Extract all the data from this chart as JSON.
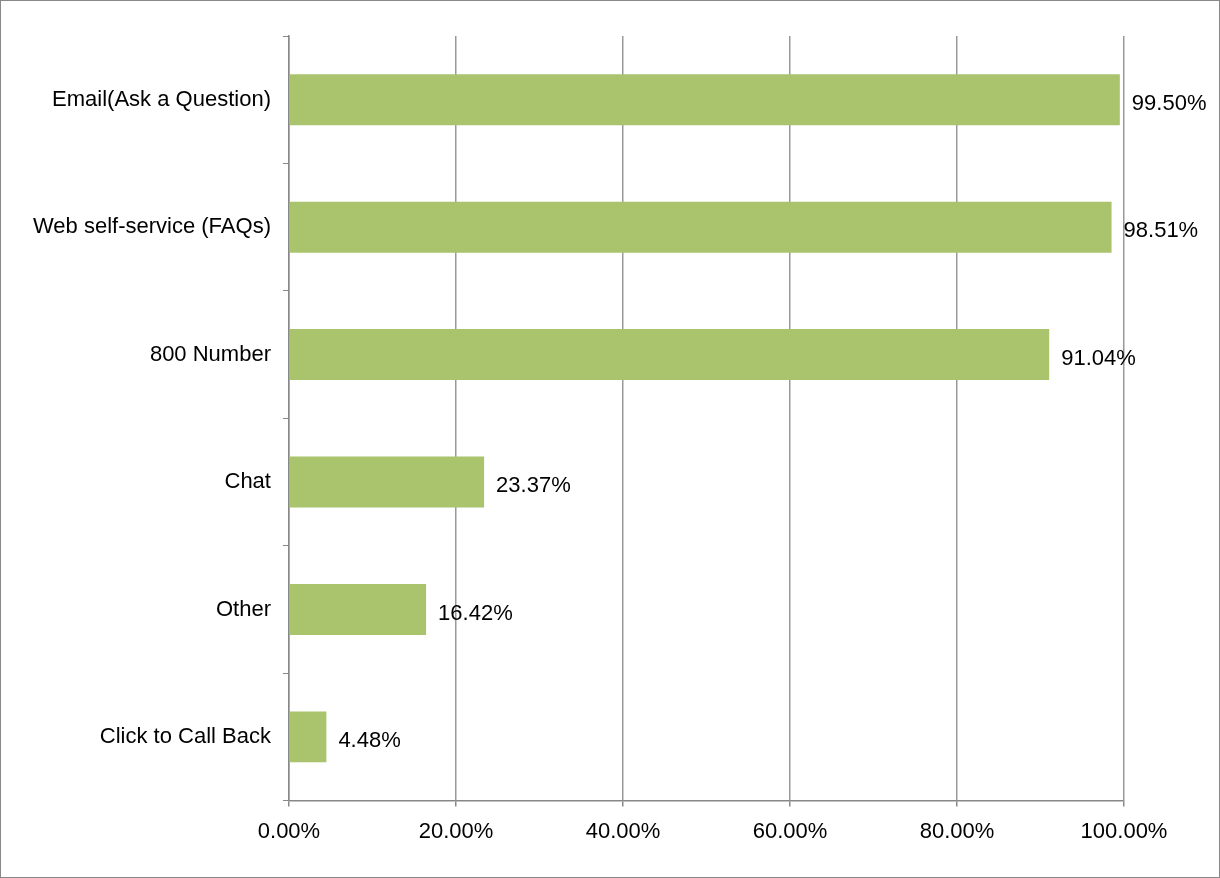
{
  "chart_data": {
    "type": "bar",
    "orientation": "horizontal",
    "categories": [
      "Email(Ask a Question)",
      "Web self-service (FAQs)",
      "800 Number",
      "Chat",
      "Other",
      "Click to Call Back"
    ],
    "values": [
      99.5,
      98.51,
      91.04,
      23.37,
      16.42,
      4.48
    ],
    "value_labels": [
      "99.50%",
      "98.51%",
      "91.04%",
      "23.37%",
      "16.42%",
      "4.48%"
    ],
    "color": "#a9c46c",
    "xlim": [
      0,
      100
    ],
    "xticks": [
      {
        "value": 0,
        "label": "0.00%"
      },
      {
        "value": 20,
        "label": "20.00%"
      },
      {
        "value": 40,
        "label": "40.00%"
      },
      {
        "value": 60,
        "label": "60.00%"
      },
      {
        "value": 80,
        "label": "80.00%"
      },
      {
        "value": 100,
        "label": "100.00%"
      }
    ],
    "grid": "x",
    "legend": false
  }
}
